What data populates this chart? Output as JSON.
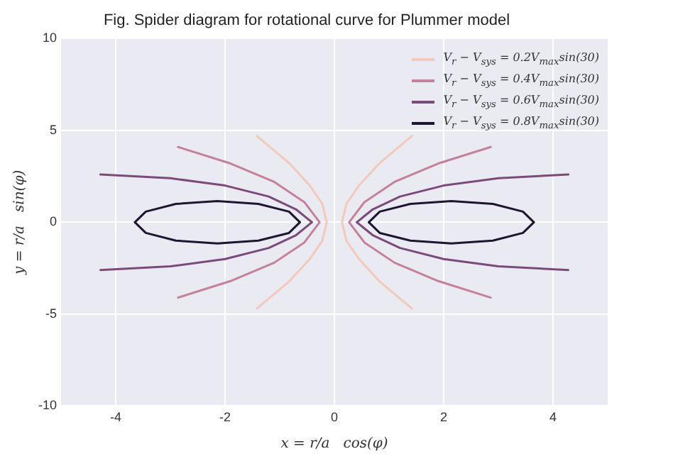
{
  "chart_data": {
    "type": "line",
    "title": "Fig. Spider diagram for rotational curve for Plummer model",
    "xlabel": "x = r/a   cos(φ)",
    "ylabel": "y = r/a   sin(φ)",
    "xlim": [
      -5,
      5
    ],
    "ylim": [
      -10,
      10
    ],
    "xticks": [
      -4,
      -2,
      0,
      2,
      4
    ],
    "yticks": [
      -10,
      -5,
      0,
      5,
      10
    ],
    "grid": true,
    "legend": "top right",
    "marker": "none",
    "line_style": "solid",
    "series": [
      {
        "name": "V$_{r}$ − V$_{sys}$ = 0.2V$_{max}$sin(30)",
        "color": "#f2c9bb",
        "x": [
          1.42,
          0.82,
          0.45,
          0.22,
          0.14,
          0.22,
          0.45,
          0.82,
          1.42,
          null,
          -1.42,
          -0.82,
          -0.45,
          -0.22,
          -0.14,
          -0.22,
          -0.45,
          -0.82,
          -1.42
        ],
        "values": [
          4.7,
          3.2,
          2,
          1,
          0,
          -1,
          -2,
          -3.2,
          -4.7,
          null,
          4.7,
          3.2,
          2,
          1,
          0,
          -1,
          -2,
          -3.2,
          -4.7
        ]
      },
      {
        "name": "V$_{r}$ − V$_{sys}$ = 0.4V$_{max}$sin(30)",
        "color": "#c4809c",
        "x": [
          2.86,
          1.9,
          1.1,
          0.55,
          0.27,
          0.55,
          1.1,
          1.9,
          2.86,
          null,
          -2.86,
          -1.9,
          -1.1,
          -0.55,
          -0.27,
          -0.55,
          -1.1,
          -1.9,
          -2.86
        ],
        "values": [
          4.1,
          3.2,
          2.2,
          1.1,
          0,
          -1.1,
          -2.2,
          -3.2,
          -4.1,
          null,
          4.1,
          3.2,
          2.2,
          1.1,
          0,
          -1.1,
          -2.2,
          -3.2,
          -4.1
        ]
      },
      {
        "name": "V$_{r}$ − V$_{sys}$ = 0.6V$_{max}$sin(30)",
        "color": "#7b4a7a",
        "x": [
          4.28,
          3,
          2,
          1.2,
          0.7,
          0.41,
          0.7,
          1.2,
          2,
          3,
          4.28,
          null,
          -4.28,
          -3,
          -2,
          -1.2,
          -0.7,
          -0.41,
          -0.7,
          -1.2,
          -2,
          -3,
          -4.28
        ],
        "values": [
          2.6,
          2.4,
          2,
          1.4,
          0.7,
          0,
          -0.7,
          -1.4,
          -2,
          -2.4,
          -2.6,
          null,
          2.6,
          2.4,
          2,
          1.4,
          0.7,
          0,
          -0.7,
          -1.4,
          -2,
          -2.4,
          -2.6
        ]
      },
      {
        "name": "V$_{r}$ − V$_{sys}$ = 0.8V$_{max}$sin(30)",
        "color": "#1e1530",
        "x": [
          0.63,
          0.83,
          1.39,
          2.14,
          2.9,
          3.45,
          3.65,
          null,
          0.63,
          0.83,
          1.39,
          2.14,
          2.9,
          3.45,
          3.65,
          null,
          -3.65,
          -3.45,
          -2.9,
          -2.14,
          -1.39,
          -0.83,
          -0.63,
          null,
          -3.65,
          -3.45,
          -2.9,
          -2.14,
          -1.39,
          -0.83,
          -0.63
        ],
        "values": [
          0,
          0.58,
          1,
          1.15,
          1,
          0.58,
          0,
          null,
          0,
          -0.58,
          -1,
          -1.15,
          -1,
          -0.58,
          0,
          null,
          0,
          0.58,
          1,
          1.15,
          1,
          0.58,
          0,
          null,
          0,
          -0.58,
          -1,
          -1.15,
          -1,
          -0.58,
          0
        ]
      }
    ]
  }
}
